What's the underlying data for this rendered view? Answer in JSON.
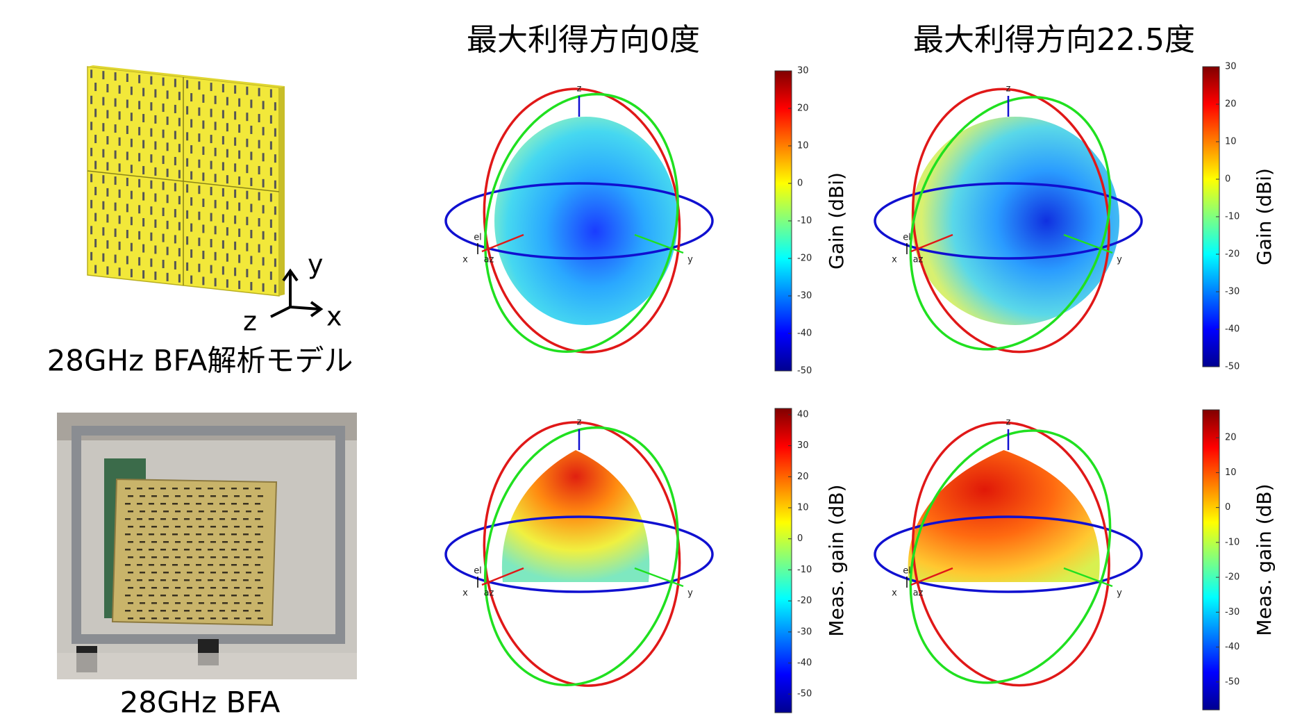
{
  "model": {
    "caption": "28GHz BFA解析モデル",
    "axis_x": "x",
    "axis_y": "y",
    "axis_z": "z"
  },
  "photo": {
    "caption": "28GHz BFA"
  },
  "columns": [
    {
      "title": "最大利得方向0度"
    },
    {
      "title": "最大利得方向22.5度"
    }
  ],
  "plots": [
    {
      "axis_labels": {
        "x": "x",
        "y": "y",
        "z": "z",
        "el": "el",
        "az": "az"
      },
      "colorbar": {
        "label": "Gain (dBi)",
        "range": [
          -50,
          30
        ],
        "ticks": [
          30,
          20,
          10,
          0,
          -10,
          -20,
          -30,
          -40,
          -50
        ]
      }
    },
    {
      "axis_labels": {
        "x": "x",
        "y": "y",
        "z": "z",
        "el": "el",
        "az": "az"
      },
      "colorbar": {
        "label": "Gain (dBi)",
        "range": [
          -50,
          30
        ],
        "ticks": [
          30,
          20,
          10,
          0,
          -10,
          -20,
          -30,
          -40,
          -50
        ]
      }
    },
    {
      "axis_labels": {
        "x": "x",
        "y": "y",
        "z": "z",
        "el": "el",
        "az": "az"
      },
      "colorbar": {
        "label": "Meas. gain (dB)",
        "range": [
          -56,
          42
        ],
        "ticks": [
          40,
          30,
          20,
          10,
          0,
          -10,
          -20,
          -30,
          -40,
          -50
        ]
      }
    },
    {
      "axis_labels": {
        "x": "x",
        "y": "y",
        "z": "z",
        "el": "el",
        "az": "az"
      },
      "colorbar": {
        "label": "Meas. gain (dB)",
        "range": [
          -58,
          28
        ],
        "ticks": [
          20,
          10,
          0,
          -10,
          -20,
          -30,
          -40,
          -50
        ]
      }
    }
  ]
}
